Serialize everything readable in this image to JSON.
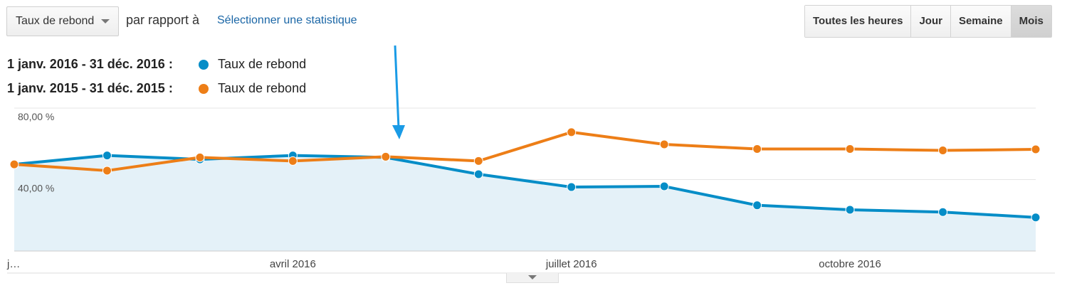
{
  "toolbar": {
    "metric_selector": "Taux de rebond",
    "compare_label": "par rapport à",
    "select_stat_link": "Sélectionner une statistique",
    "periods": [
      "Toutes les heures",
      "Jour",
      "Semaine",
      "Mois"
    ],
    "active_period": "Mois"
  },
  "legend": [
    {
      "range": "1 janv. 2016 - 31 déc. 2016 :",
      "name": "Taux de rebond",
      "color": "#058dc7"
    },
    {
      "range": "1 janv. 2015 - 31 déc. 2015 :",
      "name": "Taux de rebond",
      "color": "#ed7e17"
    }
  ],
  "chart_data": {
    "type": "line",
    "x": [
      1,
      2,
      3,
      4,
      5,
      6,
      7,
      8,
      9,
      10,
      11,
      12
    ],
    "x_tick_labels": [
      {
        "x": 1,
        "label": "j…"
      },
      {
        "x": 4,
        "label": "avril 2016"
      },
      {
        "x": 7,
        "label": "juillet 2016"
      },
      {
        "x": 10,
        "label": "octobre 2016"
      }
    ],
    "y_tick_labels": [
      {
        "y": 80,
        "label": "80,00 %"
      },
      {
        "y": 40,
        "label": "40,00 %"
      }
    ],
    "ylim": [
      0,
      80
    ],
    "series": [
      {
        "name": "Taux de rebond",
        "color": "#058dc7",
        "filled": true,
        "values": [
          48.5,
          53.5,
          51.3,
          53.5,
          52.4,
          43.0,
          35.8,
          36.2,
          25.6,
          23.1,
          21.8,
          18.8
        ]
      },
      {
        "name": "Taux de rebond",
        "color": "#ed7e17",
        "filled": false,
        "values": [
          48.5,
          45.0,
          52.4,
          50.4,
          52.8,
          50.4,
          66.5,
          59.7,
          57.1,
          57.1,
          56.3,
          56.9
        ]
      }
    ],
    "annotation_arrow_color": "#1a9be6",
    "grid": true
  }
}
